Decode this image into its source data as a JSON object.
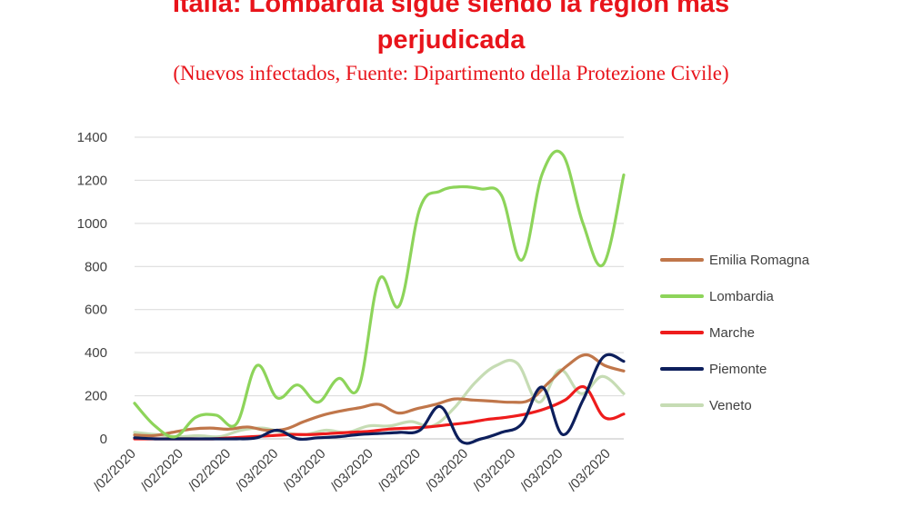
{
  "page": {
    "title_line1": "Italia: Lombardía sigue siendo la región más",
    "title_line2": "perjudicada",
    "subtitle": "(Nuevos infectados, Fuente: Dipartimento della Protezione Civile)"
  },
  "chart_data": {
    "type": "line",
    "title": "Italia: Lombardía sigue siendo la región más perjudicada",
    "subtitle": "(Nuevos infectados, Fuente: Dipartimento della Protezione Civile)",
    "ylim": [
      0,
      1400
    ],
    "yticks": [
      0,
      200,
      400,
      600,
      800,
      1000,
      1200,
      1400
    ],
    "x_tick_labels": [
      "/02/2020",
      "/02/2020",
      "/02/2020",
      "/03/2020",
      "/03/2020",
      "/03/2020",
      "/03/2020",
      "/03/2020",
      "/03/2020",
      "/03/2020",
      "/03/2020"
    ],
    "grid": true,
    "legend_position": "right",
    "series": [
      {
        "name": "Emilia Romagna",
        "color": "#c0764a",
        "values": [
          18,
          15,
          30,
          45,
          50,
          45,
          55,
          40,
          45,
          80,
          110,
          130,
          145,
          160,
          120,
          140,
          160,
          185,
          180,
          175,
          170,
          180,
          260,
          340,
          390,
          340,
          315
        ]
      },
      {
        "name": "Lombardia",
        "color": "#8dd45a",
        "values": [
          165,
          60,
          10,
          100,
          110,
          70,
          340,
          190,
          250,
          170,
          280,
          240,
          740,
          620,
          1070,
          1150,
          1170,
          1160,
          1130,
          830,
          1230,
          1320,
          1000,
          810,
          1225
        ]
      },
      {
        "name": "Marche",
        "color": "#ee1c1c",
        "values": [
          0,
          0,
          0,
          0,
          0,
          5,
          10,
          15,
          20,
          20,
          25,
          30,
          35,
          45,
          50,
          55,
          65,
          75,
          90,
          100,
          115,
          140,
          180,
          240,
          100,
          115
        ]
      },
      {
        "name": "Piemonte",
        "color": "#0d1f5c",
        "values": [
          5,
          0,
          0,
          0,
          0,
          0,
          5,
          40,
          0,
          5,
          10,
          20,
          25,
          30,
          40,
          150,
          -10,
          0,
          30,
          70,
          240,
          20,
          180,
          380,
          360
        ]
      },
      {
        "name": "Veneto",
        "color": "#c6dcb4",
        "values": [
          30,
          20,
          10,
          15,
          10,
          40,
          50,
          30,
          20,
          40,
          30,
          60,
          60,
          80,
          60,
          140,
          260,
          340,
          350,
          170,
          320,
          210,
          290,
          210
        ]
      }
    ]
  }
}
